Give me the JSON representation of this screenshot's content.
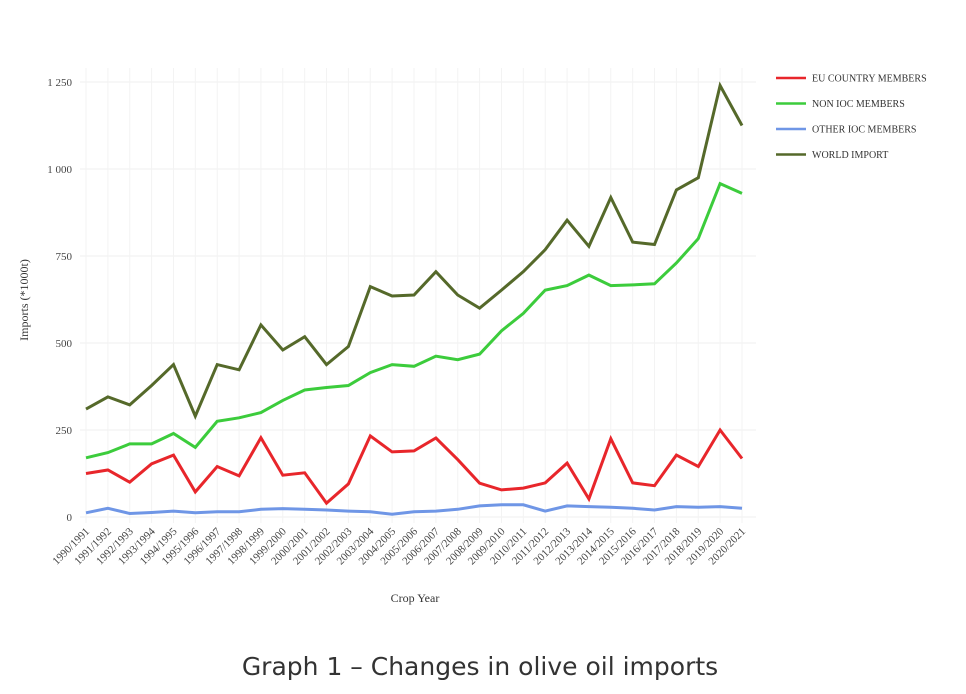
{
  "caption": "Graph 1 – Changes in olive oil imports",
  "chart_data": {
    "type": "line",
    "title": "",
    "xlabel": "Crop Year",
    "ylabel": "Imports (*1000t)",
    "ylim": [
      0,
      1250
    ],
    "yticks": [
      0,
      250,
      500,
      750,
      1000,
      1250
    ],
    "ytick_labels": [
      "0",
      "250",
      "500",
      "750",
      "1 000",
      "1 250"
    ],
    "grid": true,
    "legend_position": "top-right",
    "categories": [
      "1990/1991",
      "1991/1992",
      "1992/1993",
      "1993/1994",
      "1994/1995",
      "1995/1996",
      "1996/1997",
      "1997/1998",
      "1998/1999",
      "1999/2000",
      "2000/2001",
      "2001/2002",
      "2002/2003",
      "2003/2004",
      "2004/2005",
      "2005/2006",
      "2006/2007",
      "2007/2008",
      "2008/2009",
      "2009/2010",
      "2010/2011",
      "2011/2012",
      "2012/2013",
      "2013/2014",
      "2014/2015",
      "2015/2016",
      "2016/2017",
      "2017/2018",
      "2018/2019",
      "2019/2020",
      "2020/2021"
    ],
    "series": [
      {
        "name": "EU COUNTRY MEMBERS",
        "color": "#e8262b",
        "values": [
          125,
          135,
          100,
          153,
          178,
          72,
          145,
          118,
          228,
          120,
          127,
          40,
          95,
          233,
          187,
          190,
          227,
          165,
          97,
          78,
          83,
          98,
          155,
          52,
          225,
          98,
          90,
          178,
          145,
          250,
          168
        ]
      },
      {
        "name": "NON IOC MEMBERS",
        "color": "#3ccc3c",
        "values": [
          170,
          185,
          210,
          210,
          240,
          200,
          275,
          285,
          300,
          335,
          365,
          372,
          378,
          415,
          438,
          433,
          462,
          452,
          468,
          535,
          585,
          652,
          665,
          695,
          665,
          667,
          670,
          730,
          800,
          958,
          930
        ]
      },
      {
        "name": "OTHER IOC MEMBERS",
        "color": "#6f96e6",
        "values": [
          12,
          25,
          10,
          13,
          17,
          12,
          15,
          15,
          22,
          24,
          22,
          20,
          17,
          15,
          8,
          15,
          17,
          22,
          32,
          35,
          35,
          17,
          32,
          30,
          28,
          25,
          20,
          30,
          28,
          30,
          25
        ]
      },
      {
        "name": "WORLD IMPORT",
        "color": "#55692a",
        "values": [
          310,
          345,
          322,
          378,
          438,
          290,
          438,
          423,
          552,
          480,
          518,
          438,
          490,
          662,
          635,
          638,
          705,
          638,
          600,
          652,
          705,
          768,
          853,
          778,
          918,
          790,
          783,
          940,
          975,
          1240,
          1125
        ]
      }
    ]
  }
}
